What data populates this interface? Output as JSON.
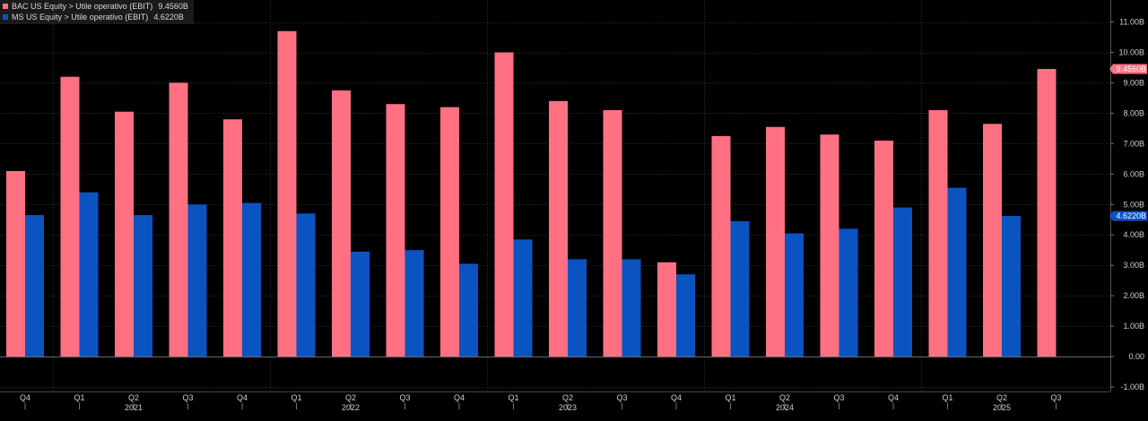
{
  "chart_data": {
    "type": "bar",
    "title": "",
    "xlabel": "",
    "ylabel": "",
    "ylim": [
      -1.0,
      11.5
    ],
    "y_ticks": [
      -1.0,
      0.0,
      1.0,
      2.0,
      3.0,
      4.0,
      5.0,
      6.0,
      7.0,
      8.0,
      9.0,
      10.0,
      11.0
    ],
    "y_tick_labels": [
      "-1.00B",
      "0.00",
      "1.00B",
      "2.00B",
      "3.00B",
      "4.00B",
      "5.00B",
      "6.00B",
      "7.00B",
      "8.00B",
      "9.00B",
      "10.00B",
      "11.00B"
    ],
    "y_axis_position": "right",
    "grid": true,
    "legend_position": "top-left",
    "categories": [
      "Q4",
      "Q1",
      "Q2",
      "Q3",
      "Q4",
      "Q1",
      "Q2",
      "Q3",
      "Q4",
      "Q1",
      "Q2",
      "Q3",
      "Q4",
      "Q1",
      "Q2",
      "Q3",
      "Q4",
      "Q1",
      "Q2",
      "Q3"
    ],
    "years": [
      {
        "label": "2021",
        "category_index": 2
      },
      {
        "label": "2022",
        "category_index": 6
      },
      {
        "label": "2023",
        "category_index": 10
      },
      {
        "label": "2024",
        "category_index": 14
      },
      {
        "label": "2025",
        "category_index": 18
      }
    ],
    "series": [
      {
        "name": "BAC US Equity > Utile operativo (EBIT)",
        "last_value": "9.4560B",
        "color": "#ff7083",
        "values": [
          6.1,
          9.2,
          8.05,
          9.0,
          7.8,
          10.7,
          8.75,
          8.3,
          8.2,
          10.0,
          8.4,
          8.1,
          3.1,
          7.25,
          7.55,
          7.3,
          7.1,
          8.1,
          7.65,
          9.456
        ]
      },
      {
        "name": "MS US Equity > Utile operativo (EBIT)",
        "last_value": "4.6220B",
        "color": "#0c53c2",
        "values": [
          4.65,
          5.4,
          4.65,
          5.0,
          5.05,
          4.7,
          3.45,
          3.5,
          3.05,
          3.85,
          3.2,
          3.2,
          2.7,
          4.45,
          4.05,
          4.2,
          4.9,
          5.55,
          4.622,
          null
        ]
      }
    ]
  }
}
